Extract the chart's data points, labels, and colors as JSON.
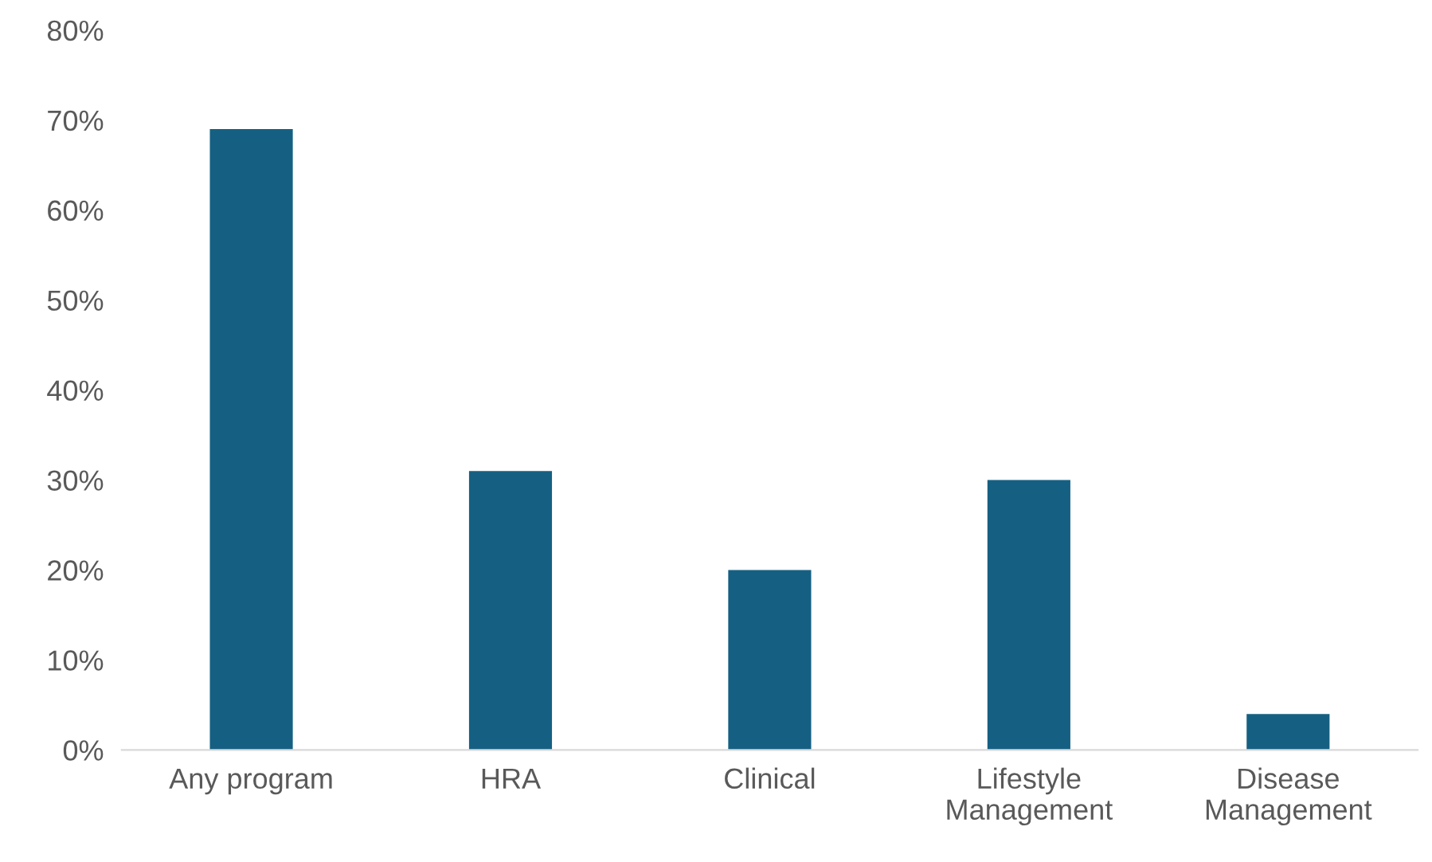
{
  "chart_data": {
    "type": "bar",
    "categories": [
      "Any program",
      "HRA",
      "Clinical",
      "Lifestyle\nManagement",
      "Disease\nManagement"
    ],
    "values": [
      69,
      31,
      20,
      30,
      4
    ],
    "color": "#156082",
    "ylim": [
      0,
      80
    ],
    "yticks": [
      {
        "value": 0,
        "label": "0%"
      },
      {
        "value": 10,
        "label": "10%"
      },
      {
        "value": 20,
        "label": "20%"
      },
      {
        "value": 30,
        "label": "30%"
      },
      {
        "value": 40,
        "label": "40%"
      },
      {
        "value": 50,
        "label": "50%"
      },
      {
        "value": 60,
        "label": "60%"
      },
      {
        "value": 70,
        "label": "70%"
      },
      {
        "value": 80,
        "label": "80%"
      }
    ],
    "grid": false,
    "legend": false
  }
}
